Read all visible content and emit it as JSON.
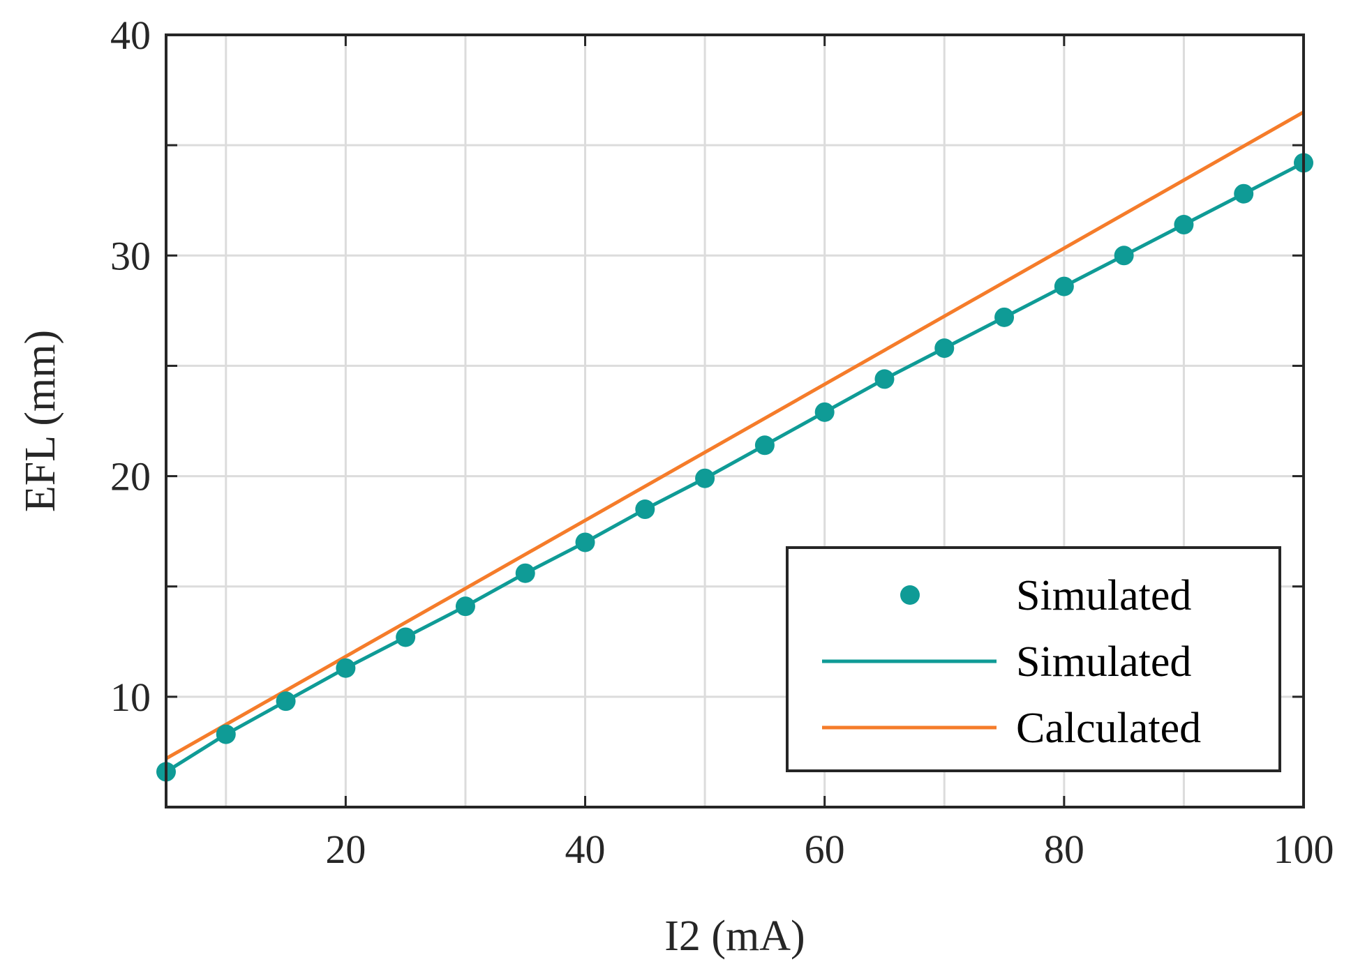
{
  "chart_data": {
    "type": "line",
    "title": "",
    "xlabel": "I2 (mA)",
    "ylabel": "EFL (mm)",
    "xlim": [
      5,
      100
    ],
    "ylim": [
      5,
      40
    ],
    "xticks": [
      20,
      40,
      60,
      80,
      100
    ],
    "yticks": [
      10,
      20,
      30,
      40
    ],
    "grid": true,
    "legend_position": "bottom-right",
    "colors": {
      "simulated": "#0f9b96",
      "calculated": "#f57c2a",
      "axes": "#262626"
    },
    "legend": [
      {
        "label": "Simulated",
        "kind": "marker",
        "series": "simulated_points"
      },
      {
        "label": "Simulated",
        "kind": "line",
        "series": "simulated_line"
      },
      {
        "label": "Calculated",
        "kind": "line",
        "series": "calculated_line"
      }
    ],
    "series": [
      {
        "name": "Simulated",
        "id": "simulated_points",
        "style": "markers",
        "x": [
          5,
          10,
          15,
          20,
          25,
          30,
          35,
          40,
          45,
          50,
          55,
          60,
          65,
          70,
          75,
          80,
          85,
          90,
          95,
          100
        ],
        "y": [
          6.6,
          8.3,
          9.8,
          11.3,
          12.7,
          14.1,
          15.6,
          17.0,
          18.5,
          19.9,
          21.4,
          22.9,
          24.4,
          25.8,
          27.2,
          28.6,
          30.0,
          31.4,
          32.8,
          34.2
        ]
      },
      {
        "name": "Simulated",
        "id": "simulated_line",
        "style": "line",
        "x": [
          5,
          10,
          15,
          20,
          25,
          30,
          35,
          40,
          45,
          50,
          55,
          60,
          65,
          70,
          75,
          80,
          85,
          90,
          95,
          100
        ],
        "y": [
          6.6,
          8.3,
          9.8,
          11.3,
          12.7,
          14.1,
          15.6,
          17.0,
          18.5,
          19.9,
          21.4,
          22.9,
          24.4,
          25.8,
          27.2,
          28.6,
          30.0,
          31.4,
          32.8,
          34.2
        ]
      },
      {
        "name": "Calculated",
        "id": "calculated_line",
        "style": "line",
        "x": [
          5,
          100
        ],
        "y": [
          7.2,
          36.5
        ]
      }
    ]
  }
}
